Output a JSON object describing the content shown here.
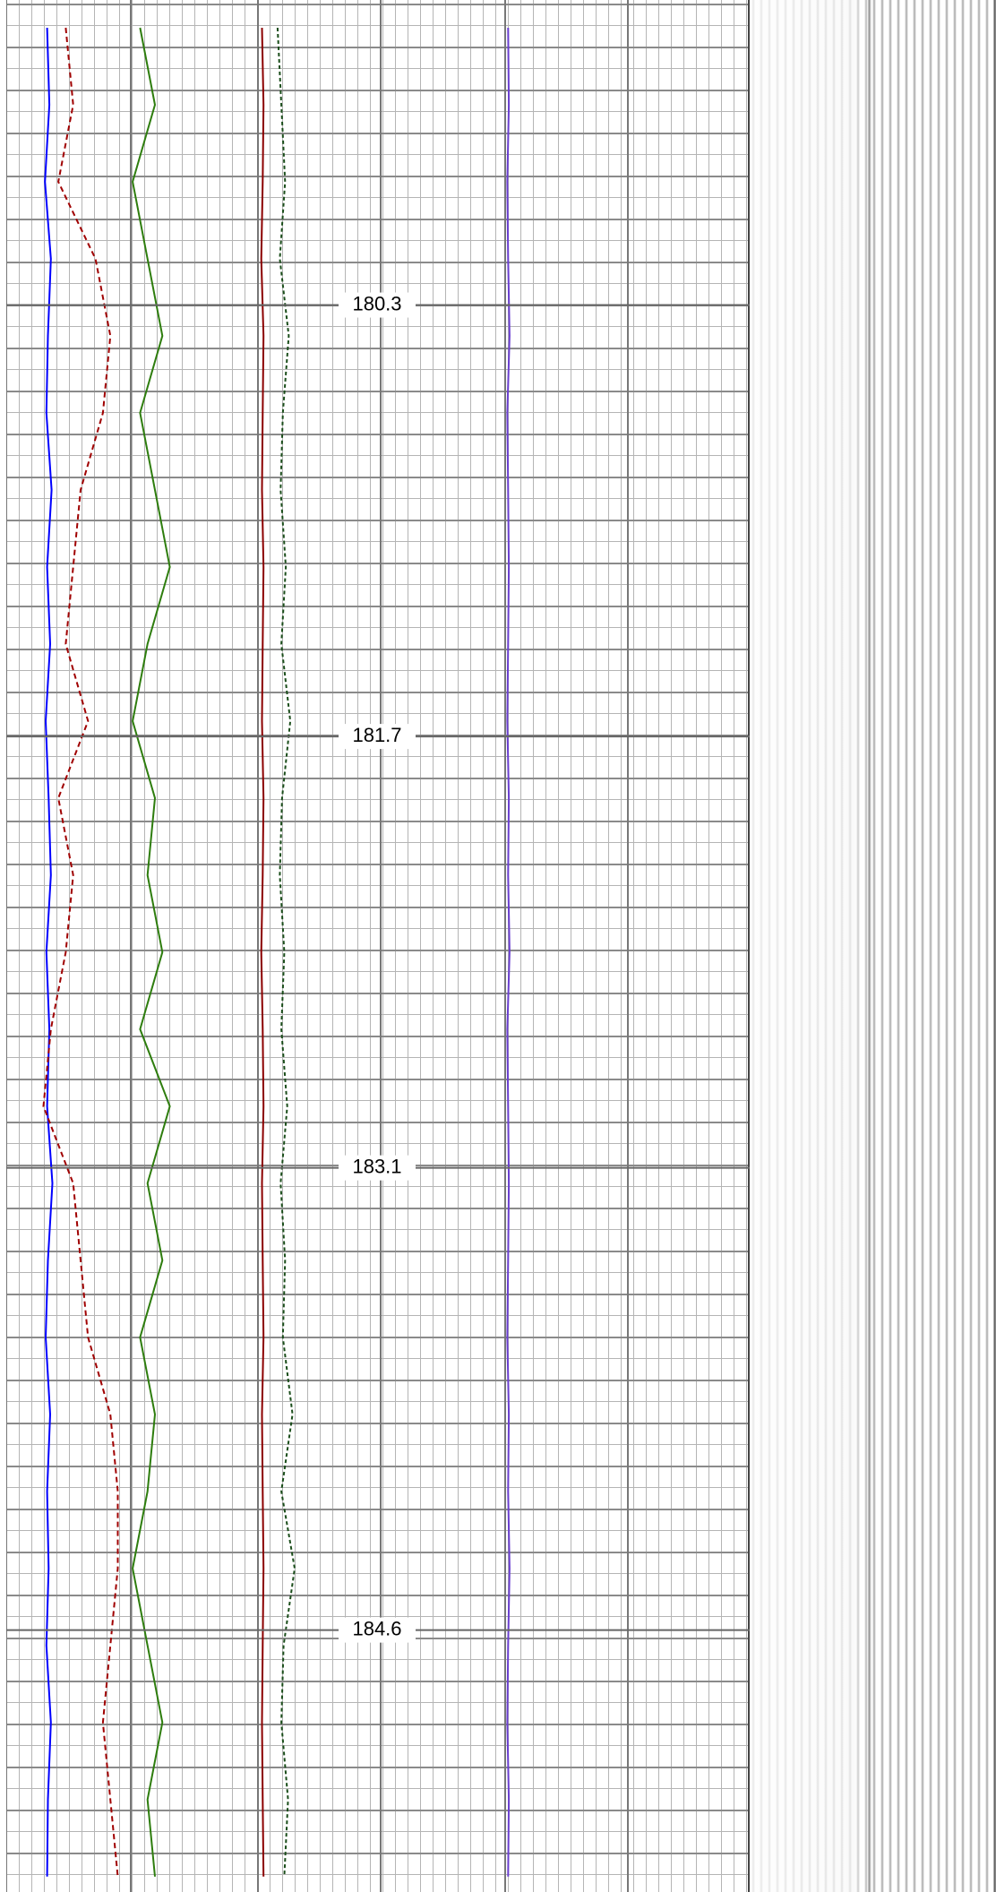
{
  "chart_data": {
    "type": "line",
    "ylim": [
      179.31,
      185.45
    ],
    "yticks": [
      180.3,
      181.7,
      183.1,
      184.6
    ],
    "xlim": [
      0,
      100
    ],
    "depth": [
      179.4,
      179.65,
      179.9,
      180.15,
      180.4,
      180.65,
      180.9,
      181.15,
      181.4,
      181.65,
      181.9,
      182.15,
      182.4,
      182.65,
      182.9,
      183.15,
      183.4,
      183.65,
      183.9,
      184.15,
      184.4,
      184.65,
      184.9,
      185.15,
      185.4
    ],
    "series": [
      {
        "color": "#0000ff",
        "dash": "",
        "values": [
          5.5,
          5.8,
          5.2,
          6,
          5.6,
          5.4,
          6.1,
          5.5,
          5.9,
          5.3,
          5.7,
          6,
          5.4,
          5.8,
          5.5,
          6.2,
          5.6,
          5.3,
          5.9,
          5.5,
          5.7,
          5.4,
          6,
          5.6,
          5.5
        ]
      },
      {
        "color": "#a00000",
        "dash": "6 4",
        "values": [
          8,
          9,
          7,
          12,
          14,
          13,
          10,
          9,
          8,
          11,
          7,
          9,
          8,
          6,
          5,
          9,
          10,
          11,
          14,
          15,
          15,
          14,
          13,
          14,
          15
        ]
      },
      {
        "color": "#2e7d0e",
        "dash": "",
        "values": [
          18,
          20,
          17,
          19,
          21,
          18,
          20,
          22,
          19,
          17,
          20,
          19,
          21,
          18,
          22,
          19,
          21,
          18,
          20,
          19,
          17,
          19,
          21,
          19,
          20
        ]
      },
      {
        "color": "#8b0000",
        "dash": "",
        "values": [
          34.4,
          34.6,
          34.5,
          34.3,
          34.6,
          34.5,
          34.4,
          34.6,
          34.5,
          34.4,
          34.6,
          34.5,
          34.3,
          34.5,
          34.6,
          34.4,
          34.5,
          34.6,
          34.4,
          34.5,
          34.6,
          34.5,
          34.4,
          34.5,
          34.6
        ]
      },
      {
        "color": "#1a4d1a",
        "dash": "4 3",
        "values": [
          36.5,
          37,
          37.5,
          36.8,
          38,
          37.2,
          36.9,
          37.6,
          37,
          38.2,
          37.1,
          36.8,
          37.4,
          37,
          37.8,
          36.9,
          37.5,
          37.2,
          38.5,
          37,
          38.8,
          37.3,
          37,
          37.9,
          37.4
        ]
      },
      {
        "color": "#6a3fd0",
        "dash": "",
        "values": [
          67.5,
          67.6,
          67.4,
          67.5,
          67.7,
          67.4,
          67.5,
          67.6,
          67.5,
          67.4,
          67.6,
          67.5,
          67.7,
          67.4,
          67.5,
          67.6,
          67.5,
          67.4,
          67.6,
          67.5,
          67.7,
          67.5,
          67.4,
          67.6,
          67.5
        ]
      }
    ]
  }
}
